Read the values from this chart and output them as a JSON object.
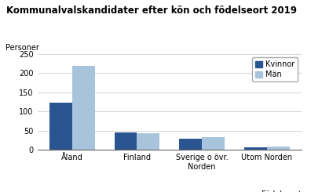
{
  "title": "Kommunalvalskandidater efter kön och födelseort 2019",
  "ylabel": "Personer",
  "xlabel": "Födelseort",
  "categories": [
    "Åland",
    "Finland",
    "Sverige o övr.\nNorden",
    "Utom Norden"
  ],
  "kvinnor": [
    122,
    46,
    28,
    6
  ],
  "man": [
    218,
    44,
    33,
    8
  ],
  "color_kvinnor": "#2B5591",
  "color_man": "#A8C4DC",
  "ylim": [
    0,
    250
  ],
  "yticks": [
    0,
    50,
    100,
    150,
    200,
    250
  ],
  "legend_labels": [
    "Kvinnor",
    "Män"
  ],
  "bar_width": 0.35,
  "title_fontsize": 8.5,
  "label_fontsize": 7,
  "tick_fontsize": 7,
  "background_color": "#ffffff"
}
